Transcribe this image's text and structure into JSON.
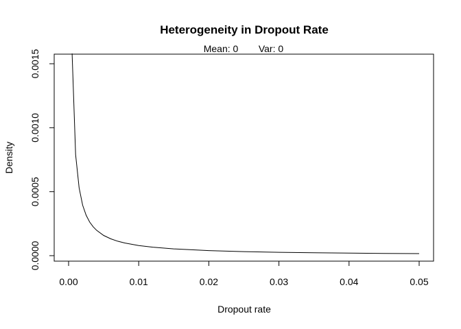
{
  "chart_data": {
    "type": "line",
    "title": "Heterogeneity in Dropout Rate",
    "subtitle_mean": "Mean: 0",
    "subtitle_var": "Var: 0",
    "xlabel": "Dropout rate",
    "ylabel": "Density",
    "xlim": [
      0.0,
      0.05
    ],
    "ylim": [
      0.0,
      0.0016
    ],
    "x_ticks": [
      0.0,
      0.01,
      0.02,
      0.03,
      0.04,
      0.05
    ],
    "x_tick_labels": [
      "0.00",
      "0.01",
      "0.02",
      "0.03",
      "0.04",
      "0.05"
    ],
    "y_ticks": [
      0.0,
      0.0005,
      0.001,
      0.0015
    ],
    "y_tick_labels": [
      "0.0000",
      "0.0005",
      "0.0010",
      "0.0015"
    ],
    "grid": false,
    "series": [
      {
        "x": [
          0.0005,
          0.001,
          0.0015,
          0.002,
          0.0025,
          0.003,
          0.0035,
          0.004,
          0.005,
          0.006,
          0.007,
          0.008,
          0.01,
          0.012,
          0.015,
          0.02,
          0.025,
          0.03,
          0.035,
          0.04,
          0.045,
          0.05
        ],
        "y": [
          0.00158,
          0.00079,
          0.00053,
          0.000395,
          0.000316,
          0.000263,
          0.000226,
          0.000198,
          0.000158,
          0.000132,
          0.000113,
          9.9e-05,
          7.9e-05,
          6.6e-05,
          5.3e-05,
          3.95e-05,
          3.16e-05,
          2.63e-05,
          2.26e-05,
          1.98e-05,
          1.76e-05,
          1.58e-05
        ],
        "color": "#000000"
      }
    ]
  }
}
